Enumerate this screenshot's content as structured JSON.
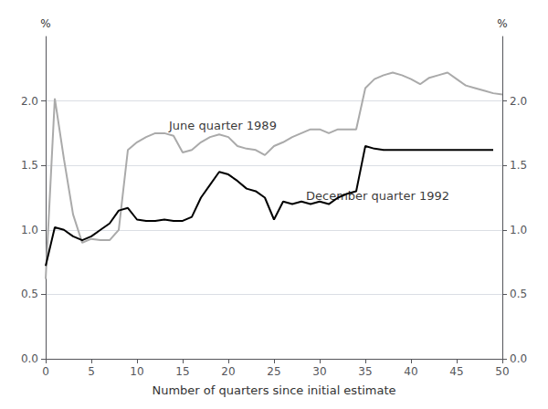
{
  "chart_data": {
    "type": "line",
    "xlabel": "Number of quarters since initial estimate",
    "ylabel": "%",
    "y2label": "%",
    "xlim": [
      0,
      50
    ],
    "ylim": [
      0.0,
      2.5
    ],
    "y2lim": [
      0.0,
      2.5
    ],
    "xticks": [
      0,
      5,
      10,
      15,
      20,
      25,
      30,
      35,
      40,
      45,
      50
    ],
    "yticks": [
      {
        "value": 0.0,
        "label": "0.0"
      },
      0.5,
      {
        "value": 1.0,
        "label": "1.0"
      },
      1.5,
      {
        "value": 2.0,
        "label": "2.0"
      }
    ],
    "y2ticks": [
      {
        "value": 0.0,
        "label": "0.0"
      },
      0.5,
      {
        "value": 1.0,
        "label": "1.0"
      },
      1.5,
      {
        "value": 2.0,
        "label": "2.0"
      }
    ],
    "grid": true,
    "series": [
      {
        "color": "#aaaaaa",
        "x": [
          0,
          1,
          2,
          3,
          4,
          5,
          6,
          7,
          8,
          9,
          10,
          11,
          12,
          13,
          14,
          15,
          16,
          17,
          18,
          19,
          20,
          21,
          22,
          23,
          24,
          25,
          26,
          27,
          28,
          29,
          30,
          31,
          32,
          33,
          34,
          35,
          36,
          37,
          38,
          39,
          40,
          41,
          42,
          43,
          44,
          45,
          46,
          47,
          48,
          49,
          50
        ],
        "values": [
          0.62,
          2.02,
          1.55,
          1.12,
          0.9,
          0.93,
          0.92,
          0.92,
          1.0,
          1.62,
          1.68,
          1.72,
          1.75,
          1.75,
          1.73,
          1.6,
          1.62,
          1.68,
          1.72,
          1.74,
          1.72,
          1.65,
          1.63,
          1.62,
          1.58,
          1.65,
          1.68,
          1.72,
          1.75,
          1.78,
          1.78,
          1.75,
          1.78,
          1.78,
          1.78,
          2.1,
          2.17,
          2.2,
          2.22,
          2.2,
          2.17,
          2.13,
          2.18,
          2.2,
          2.22,
          2.17,
          2.12,
          2.1,
          2.08,
          2.06,
          2.05
        ]
      },
      {
        "color": "#000000",
        "x": [
          0,
          1,
          2,
          3,
          4,
          5,
          6,
          7,
          8,
          9,
          10,
          11,
          12,
          13,
          14,
          15,
          16,
          17,
          18,
          19,
          20,
          21,
          22,
          23,
          24,
          25,
          26,
          27,
          28,
          29,
          30,
          31,
          32,
          33,
          34,
          35,
          36,
          37,
          38,
          39,
          40,
          41,
          42,
          43,
          44,
          45,
          46,
          47,
          48,
          49
        ],
        "values": [
          0.72,
          1.02,
          1.0,
          0.95,
          0.92,
          0.95,
          1.0,
          1.05,
          1.15,
          1.17,
          1.08,
          1.07,
          1.07,
          1.08,
          1.07,
          1.07,
          1.1,
          1.25,
          1.35,
          1.45,
          1.43,
          1.38,
          1.32,
          1.3,
          1.25,
          1.08,
          1.22,
          1.2,
          1.22,
          1.2,
          1.22,
          1.2,
          1.25,
          1.28,
          1.3,
          1.65,
          1.63,
          1.62,
          1.62,
          1.62,
          1.62,
          1.62,
          1.62,
          1.62,
          1.62,
          1.62,
          1.62,
          1.62,
          1.62,
          1.62
        ]
      }
    ],
    "annotations": [
      {
        "text": "June quarter 1989",
        "x": 13.5,
        "y": 1.76
      },
      {
        "text": "December quarter 1992",
        "x": 28.5,
        "y": 1.22
      }
    ]
  }
}
